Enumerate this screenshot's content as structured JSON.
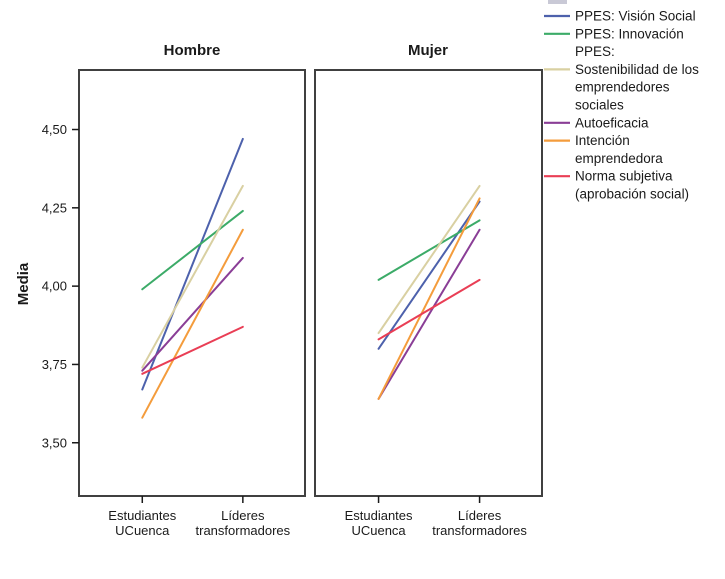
{
  "chart_data": {
    "type": "line",
    "title": "",
    "xlabel": "",
    "ylabel": "Media",
    "ylim": [
      3.33,
      4.69
    ],
    "grid": false,
    "legend_position": "right-top",
    "y_ticks": [
      {
        "value": 4.5,
        "label": "4,50"
      },
      {
        "value": 4.25,
        "label": "4,25"
      },
      {
        "value": 4.0,
        "label": "4,00"
      },
      {
        "value": 3.75,
        "label": "3,75"
      },
      {
        "value": 3.5,
        "label": "3,50"
      }
    ],
    "categories": [
      "Estudiantes UCuenca",
      "Líderes transformadores"
    ],
    "category_label_lines": [
      [
        "Estudiantes",
        "UCuenca"
      ],
      [
        "Líderes",
        "transformadores"
      ]
    ],
    "panels": [
      {
        "title": "Hombre",
        "series": [
          {
            "name": "PPES: Visión Social",
            "color": "#4d61ac",
            "values": [
              3.67,
              4.47
            ]
          },
          {
            "name": "PPES: Innovación",
            "color": "#3cab68",
            "values": [
              3.99,
              4.24
            ]
          },
          {
            "name": "PPES: Sostenibilidad de los emprendedores sociales",
            "color": "#d9d0a2",
            "values": [
              3.74,
              4.32
            ]
          },
          {
            "name": "Autoeficacia",
            "color": "#8a3e96",
            "values": [
              3.73,
              4.09
            ]
          },
          {
            "name": "Intención emprendedora",
            "color": "#f49c3c",
            "values": [
              3.58,
              4.18
            ]
          },
          {
            "name": "Norma subjetiva (aprobación social)",
            "color": "#e93e55",
            "values": [
              3.72,
              3.87
            ]
          }
        ]
      },
      {
        "title": "Mujer",
        "series": [
          {
            "name": "PPES: Visión Social",
            "color": "#4d61ac",
            "values": [
              3.8,
              4.27
            ]
          },
          {
            "name": "PPES: Innovación",
            "color": "#3cab68",
            "values": [
              4.02,
              4.21
            ]
          },
          {
            "name": "PPES: Sostenibilidad de los emprendedores sociales",
            "color": "#d9d0a2",
            "values": [
              3.85,
              4.32
            ]
          },
          {
            "name": "Autoeficacia",
            "color": "#8a3e96",
            "values": [
              3.64,
              4.18
            ]
          },
          {
            "name": "Intención emprendedora",
            "color": "#f49c3c",
            "values": [
              3.64,
              4.28
            ]
          },
          {
            "name": "Norma subjetiva (aprobación social)",
            "color": "#e93e55",
            "values": [
              3.83,
              4.02
            ]
          }
        ]
      }
    ]
  },
  "legend": {
    "items": [
      {
        "label": "PPES: Visión Social",
        "lines": [
          "PPES: Visión Social"
        ],
        "color": "#4d61ac",
        "swatch_line": 0
      },
      {
        "label": "PPES: Innovación",
        "lines": [
          "PPES: Innovación"
        ],
        "color": "#3cab68",
        "swatch_line": 0
      },
      {
        "label": "PPES: Sostenibilidad de los emprendedores sociales",
        "lines": [
          "PPES:",
          "Sostenibilidad de los",
          "emprendedores",
          "sociales"
        ],
        "color": "#d9d0a2",
        "swatch_line": 1
      },
      {
        "label": "Autoeficacia",
        "lines": [
          "Autoeficacia"
        ],
        "color": "#8a3e96",
        "swatch_line": 0
      },
      {
        "label": "Intención emprendedora",
        "lines": [
          "Intención",
          "emprendedora"
        ],
        "color": "#f49c3c",
        "swatch_line": 0
      },
      {
        "label": "Norma subjetiva (aprobación social)",
        "lines": [
          "Norma subjetiva",
          "(aprobación social)"
        ],
        "color": "#e93e55",
        "swatch_line": 0
      }
    ]
  },
  "colors": {
    "panel_border": "#404040",
    "tick": "#1a1a1a",
    "text": "#1a1a1a",
    "background": "#ffffff",
    "top_artifact": "#c9c9d6"
  }
}
